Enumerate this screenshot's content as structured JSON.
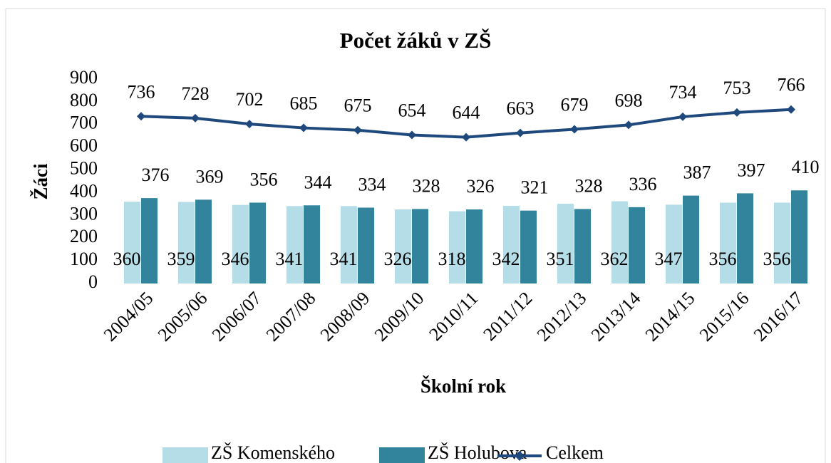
{
  "chart_data": {
    "type": "combo",
    "title": "Počet žáků v ZŠ",
    "y_label": "Žáci",
    "x_label": "Školní rok",
    "categories": [
      "2004/05",
      "2005/06",
      "2006/07",
      "2007/08",
      "2008/09",
      "2009/10",
      "2010/11",
      "2011/12",
      "2012/13",
      "2013/14",
      "2014/15",
      "2015/16",
      "2016/17"
    ],
    "series": [
      {
        "name": "ZŠ Komenského",
        "type": "bar",
        "color": "#b4dde8",
        "values": [
          360,
          359,
          346,
          341,
          341,
          326,
          318,
          342,
          351,
          362,
          347,
          356,
          356
        ]
      },
      {
        "name": "ZŠ Holubova",
        "type": "bar",
        "color": "#31849b",
        "values": [
          376,
          369,
          356,
          344,
          334,
          328,
          326,
          321,
          328,
          336,
          387,
          397,
          410
        ]
      },
      {
        "name": "Celkem",
        "type": "line",
        "color": "#1f497d",
        "values": [
          736,
          728,
          702,
          685,
          675,
          654,
          644,
          663,
          679,
          698,
          734,
          753,
          766
        ]
      }
    ],
    "ylim": [
      0,
      900
    ],
    "yticks": [
      0,
      100,
      200,
      300,
      400,
      500,
      600,
      700,
      800,
      900
    ],
    "grid": false,
    "legend": "bottom"
  }
}
